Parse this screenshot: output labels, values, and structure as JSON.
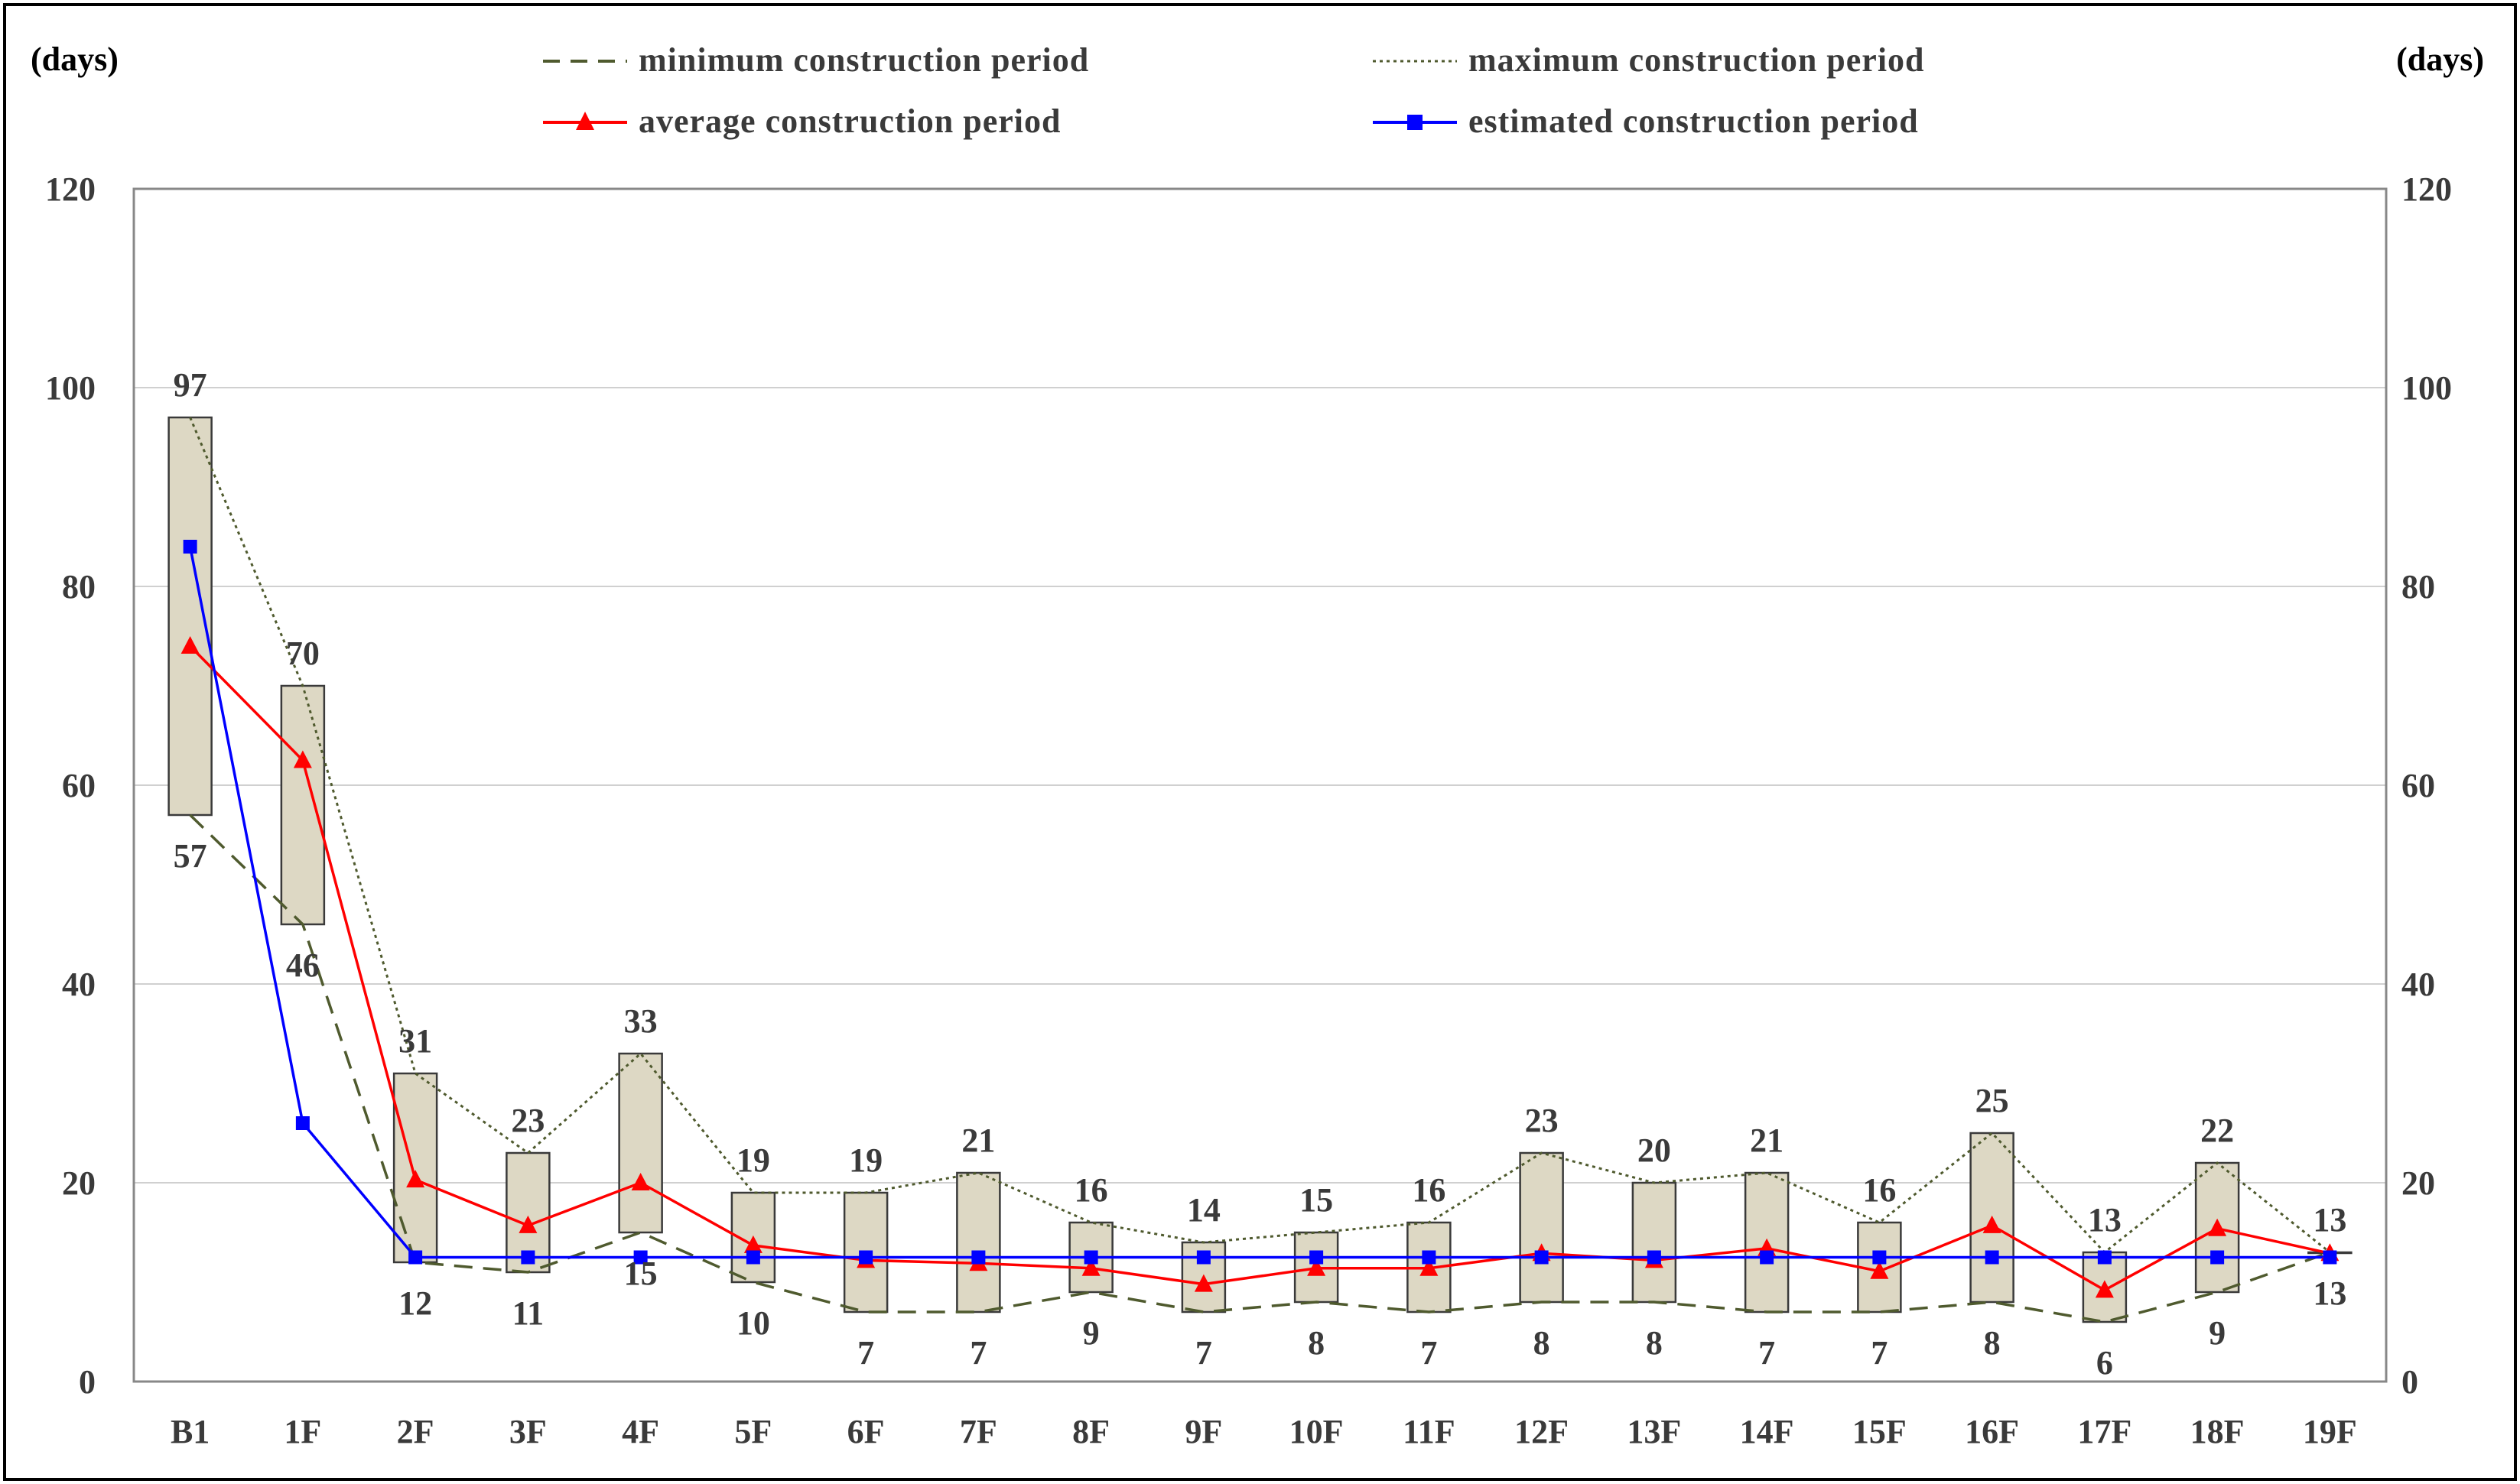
{
  "chart_data": {
    "type": "line",
    "categories": [
      "B1",
      "1F",
      "2F",
      "3F",
      "4F",
      "5F",
      "6F",
      "7F",
      "8F",
      "9F",
      "10F",
      "11F",
      "12F",
      "13F",
      "14F",
      "15F",
      "16F",
      "17F",
      "18F",
      "19F"
    ],
    "unit_left": "(days)",
    "unit_right": "(days)",
    "ylim": [
      0,
      120
    ],
    "yticks": [
      0,
      20,
      40,
      60,
      80,
      100,
      120
    ],
    "ytick_labels": [
      "0",
      "20",
      "40",
      "60",
      "80",
      "100",
      "120"
    ],
    "grid": true,
    "legend_position": "top",
    "range_bars": {
      "min": [
        57,
        46,
        12,
        11,
        15,
        10,
        7,
        7,
        9,
        7,
        8,
        7,
        8,
        8,
        7,
        7,
        8,
        6,
        9,
        13
      ],
      "max": [
        97,
        70,
        31,
        23,
        33,
        19,
        19,
        21,
        16,
        14,
        15,
        16,
        23,
        20,
        21,
        16,
        25,
        13,
        22,
        13
      ]
    },
    "series": [
      {
        "name": "minimum construction period",
        "style": "dashed",
        "color": "#4f5a2e",
        "values": [
          57,
          46,
          12,
          11,
          15,
          10,
          7,
          7,
          9,
          7,
          8,
          7,
          8,
          8,
          7,
          7,
          8,
          6,
          9,
          13
        ],
        "labels": [
          "57",
          "46",
          "12",
          "11",
          "15",
          "10",
          "7",
          "7",
          "9",
          "7",
          "8",
          "7",
          "8",
          "8",
          "7",
          "7",
          "8",
          "6",
          "9",
          "13"
        ]
      },
      {
        "name": "maximum construction period",
        "style": "dotted",
        "color": "#4f5a2e",
        "values": [
          97,
          70,
          31,
          23,
          33,
          19,
          19,
          21,
          16,
          14,
          15,
          16,
          23,
          20,
          21,
          16,
          25,
          13,
          22,
          13
        ],
        "labels": [
          "97",
          "70",
          "31",
          "23",
          "33",
          "19",
          "19",
          "21",
          "16",
          "14",
          "15",
          "16",
          "23",
          "20",
          "21",
          "16",
          "25",
          "13",
          "22",
          "13"
        ]
      },
      {
        "name": "average construction period",
        "style": "solid",
        "marker": "triangle",
        "color": "#ff0000",
        "values": [
          74,
          62.5,
          20.3,
          15.7,
          20,
          13.7,
          12.2,
          11.9,
          11.4,
          9.8,
          11.4,
          11.4,
          12.9,
          12.2,
          13.4,
          11.1,
          15.7,
          9.2,
          15.4,
          12.9
        ]
      },
      {
        "name": "estimated construction period",
        "style": "solid",
        "marker": "square",
        "color": "#0000ff",
        "values": [
          84,
          26,
          12.5,
          12.5,
          12.5,
          12.5,
          12.5,
          12.5,
          12.5,
          12.5,
          12.5,
          12.5,
          12.5,
          12.5,
          12.5,
          12.5,
          12.5,
          12.5,
          12.5,
          12.5
        ]
      }
    ]
  },
  "colors": {
    "bar_fill": "#ddd8c4",
    "bar_stroke": "#3a3a3a",
    "grid": "#d0d0d0",
    "axis": "#888888",
    "frame": "#000000"
  }
}
